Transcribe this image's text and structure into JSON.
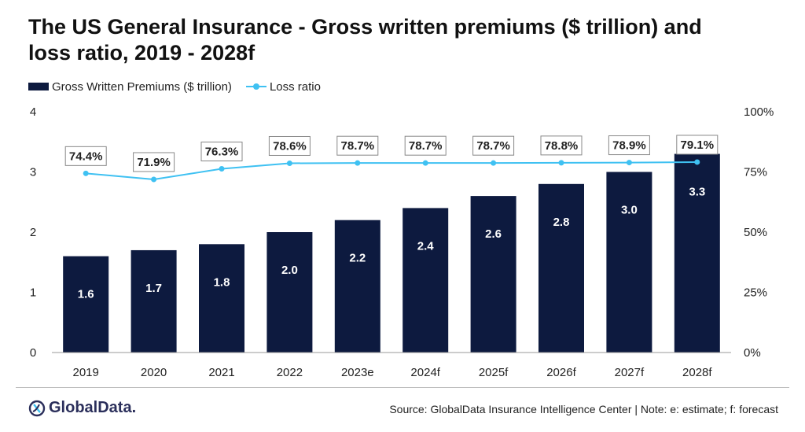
{
  "title": "The US General Insurance - Gross written premiums ($ trillion) and loss ratio, 2019 - 2028f",
  "legend": {
    "bar_label": "Gross Written Premiums ($ trillion)",
    "line_label": "Loss ratio"
  },
  "footer": {
    "logo_text": "GlobalData.",
    "source": "Source: GlobalData Insurance Intelligence Center | Note: e: estimate; f: forecast"
  },
  "colors": {
    "bar": "#0d1a3f",
    "line": "#3fc1f2",
    "axis": "#999999"
  },
  "chart_data": {
    "type": "bar",
    "categories": [
      "2019",
      "2020",
      "2021",
      "2022",
      "2023e",
      "2024f",
      "2025f",
      "2026f",
      "2027f",
      "2028f"
    ],
    "series": [
      {
        "name": "Gross Written Premiums ($ trillion)",
        "type": "bar",
        "axis": "left",
        "values": [
          1.6,
          1.7,
          1.8,
          2.0,
          2.2,
          2.4,
          2.6,
          2.8,
          3.0,
          3.3
        ],
        "labels": [
          "1.6",
          "1.7",
          "1.8",
          "2.0",
          "2.2",
          "2.4",
          "2.6",
          "2.8",
          "3.0",
          "3.3"
        ]
      },
      {
        "name": "Loss ratio",
        "type": "line",
        "axis": "right",
        "values": [
          74.4,
          71.9,
          76.3,
          78.6,
          78.7,
          78.7,
          78.7,
          78.8,
          78.9,
          79.1
        ],
        "labels": [
          "74.4%",
          "71.9%",
          "76.3%",
          "78.6%",
          "78.7%",
          "78.7%",
          "78.7%",
          "78.8%",
          "78.9%",
          "79.1%"
        ]
      }
    ],
    "y_left": {
      "ylim": [
        0,
        4
      ],
      "ticks": [
        "0",
        "1",
        "2",
        "3",
        "4"
      ]
    },
    "y_right": {
      "ylim": [
        0,
        100
      ],
      "ticks": [
        "0%",
        "25%",
        "50%",
        "75%",
        "100%"
      ]
    },
    "grid": false,
    "legend_position": "top-left"
  }
}
